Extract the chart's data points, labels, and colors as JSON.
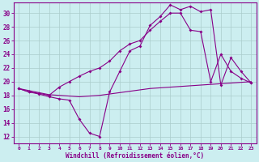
{
  "xlabel": "Windchill (Refroidissement éolien,°C)",
  "bg_color": "#cceef0",
  "grid_color": "#aacccc",
  "line_color": "#880088",
  "xlim": [
    -0.5,
    23.5
  ],
  "ylim": [
    11,
    31.5
  ],
  "yticks": [
    12,
    14,
    16,
    18,
    20,
    22,
    24,
    26,
    28,
    30
  ],
  "xticks": [
    0,
    1,
    2,
    3,
    4,
    5,
    6,
    7,
    8,
    9,
    10,
    11,
    12,
    13,
    14,
    15,
    16,
    17,
    18,
    19,
    20,
    21,
    22,
    23
  ],
  "line1_x": [
    0,
    1,
    2,
    3,
    4,
    5,
    6,
    7,
    8,
    9,
    10,
    11,
    12,
    13,
    14,
    15,
    16,
    17,
    18,
    19,
    20,
    21,
    22,
    23
  ],
  "line1_y": [
    19.0,
    18.7,
    18.4,
    18.1,
    18.0,
    17.9,
    17.8,
    17.9,
    18.0,
    18.2,
    18.4,
    18.6,
    18.8,
    19.0,
    19.1,
    19.2,
    19.3,
    19.4,
    19.5,
    19.6,
    19.7,
    19.8,
    19.9,
    20.0
  ],
  "line2_x": [
    0,
    1,
    2,
    3,
    4,
    5,
    6,
    7,
    8,
    9,
    10,
    11,
    12,
    13,
    14,
    15,
    16,
    17,
    18,
    19,
    20,
    21,
    22,
    23
  ],
  "line2_y": [
    19.0,
    18.5,
    18.2,
    17.8,
    17.5,
    17.3,
    14.5,
    12.5,
    12.0,
    18.5,
    21.5,
    24.5,
    25.2,
    28.2,
    29.5,
    31.2,
    30.5,
    31.0,
    30.2,
    30.5,
    19.5,
    23.5,
    21.5,
    19.8
  ],
  "line3_x": [
    0,
    1,
    2,
    3,
    4,
    5,
    6,
    7,
    8,
    9,
    10,
    11,
    12,
    13,
    14,
    15,
    16,
    17,
    18,
    19,
    20,
    21,
    22,
    23
  ],
  "line3_y": [
    19.0,
    18.5,
    18.3,
    18.0,
    19.2,
    20.0,
    20.8,
    21.5,
    22.0,
    23.0,
    24.5,
    25.5,
    26.0,
    27.5,
    28.8,
    30.0,
    30.0,
    27.5,
    27.3,
    20.0,
    24.0,
    21.5,
    20.5,
    19.8
  ]
}
